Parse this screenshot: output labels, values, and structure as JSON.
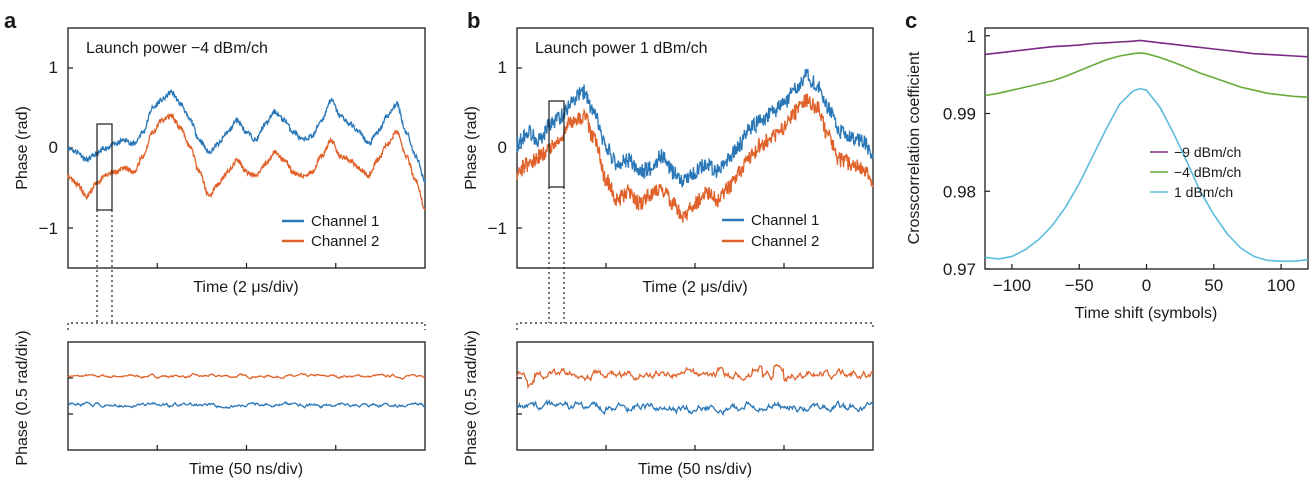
{
  "panels": [
    {
      "label": "a",
      "title": "Launch power −4 dBm/ch",
      "main": {
        "ylabel": "Phase (rad)",
        "xlabel": "Time (2 μs/div)",
        "ylim": [
          -1.5,
          1.5
        ],
        "yticks": [
          "1",
          "0",
          "−1"
        ]
      },
      "zoom": {
        "ylabel": "Phase (0.5 rad/div)",
        "xlabel": "Time (50 ns/div)"
      }
    },
    {
      "label": "b",
      "title": "Launch power 1 dBm/ch",
      "main": {
        "ylabel": "Phase (rad)",
        "xlabel": "Time (2 μs/div)",
        "ylim": [
          -1.5,
          1.5
        ],
        "yticks": [
          "1",
          "0",
          "−1"
        ]
      },
      "zoom": {
        "ylabel": "Phase (0.5 rad/div)",
        "xlabel": "Time (50 ns/div)"
      }
    },
    {
      "label": "c"
    }
  ],
  "colors": {
    "channel1": "#2a77b8",
    "channel2": "#e0622a",
    "p_m9": "#7b2a86",
    "p_m4": "#6aaa3a",
    "p_1": "#5bbcdc"
  },
  "chart_data": [
    {
      "type": "line",
      "panel": "a",
      "title": "Launch power −4 dBm/ch",
      "xlabel": "Time (2 μs/div)",
      "ylabel": "Phase (rad)",
      "ylim": [
        -1.5,
        1.5
      ],
      "yticks": [
        1,
        0,
        -1
      ],
      "legend": "bottom-right",
      "series": [
        {
          "name": "Channel 1",
          "color": "#2a77b8",
          "noise": 0.03,
          "values": [
            0.0,
            -0.05,
            -0.15,
            -0.08,
            0.0,
            0.05,
            0.1,
            0.05,
            0.2,
            0.5,
            0.6,
            0.7,
            0.55,
            0.35,
            0.1,
            -0.05,
            0.05,
            0.2,
            0.35,
            0.2,
            0.1,
            0.3,
            0.45,
            0.35,
            0.2,
            0.1,
            0.15,
            0.35,
            0.6,
            0.4,
            0.3,
            0.2,
            0.05,
            0.2,
            0.4,
            0.55,
            0.2,
            -0.1,
            -0.4
          ]
        },
        {
          "name": "Channel 2",
          "color": "#e0622a",
          "noise": 0.03,
          "values": [
            -0.35,
            -0.45,
            -0.6,
            -0.45,
            -0.35,
            -0.3,
            -0.25,
            -0.3,
            -0.1,
            0.2,
            0.35,
            0.4,
            0.25,
            0.0,
            -0.3,
            -0.6,
            -0.45,
            -0.3,
            -0.15,
            -0.3,
            -0.35,
            -0.2,
            -0.05,
            -0.15,
            -0.3,
            -0.35,
            -0.3,
            -0.1,
            0.1,
            -0.1,
            -0.15,
            -0.25,
            -0.35,
            -0.15,
            0.05,
            0.2,
            -0.1,
            -0.4,
            -0.75
          ]
        }
      ]
    },
    {
      "type": "line",
      "panel": "b",
      "title": "Launch power 1 dBm/ch",
      "xlabel": "Time (2 μs/div)",
      "ylabel": "Phase (rad)",
      "ylim": [
        -1.5,
        1.5
      ],
      "yticks": [
        1,
        0,
        -1
      ],
      "legend": "bottom-right",
      "series": [
        {
          "name": "Channel 1",
          "color": "#2a77b8",
          "noise": 0.1,
          "values": [
            0.05,
            0.2,
            0.1,
            0.3,
            0.4,
            0.6,
            0.7,
            0.4,
            0.0,
            -0.2,
            -0.15,
            -0.3,
            -0.25,
            -0.1,
            -0.3,
            -0.4,
            -0.3,
            -0.2,
            -0.3,
            -0.15,
            0.05,
            0.25,
            0.35,
            0.45,
            0.55,
            0.75,
            0.9,
            0.8,
            0.5,
            0.2,
            0.15,
            0.1,
            -0.05
          ]
        },
        {
          "name": "Channel 2",
          "color": "#e0622a",
          "noise": 0.1,
          "values": [
            -0.3,
            -0.2,
            -0.1,
            0.0,
            0.15,
            0.35,
            0.4,
            0.1,
            -0.4,
            -0.65,
            -0.55,
            -0.7,
            -0.6,
            -0.5,
            -0.7,
            -0.85,
            -0.7,
            -0.55,
            -0.65,
            -0.5,
            -0.3,
            -0.1,
            0.05,
            0.15,
            0.25,
            0.45,
            0.6,
            0.5,
            0.15,
            -0.15,
            -0.2,
            -0.25,
            -0.4
          ]
        }
      ]
    },
    {
      "type": "line",
      "panel": "a-zoom",
      "xlabel": "Time (50 ns/div)",
      "ylabel": "Phase (0.5 rad/div)",
      "series": [
        {
          "name": "Channel 2",
          "color": "#e0622a",
          "base": 0.55,
          "noise": 0.025,
          "spikes": 0
        },
        {
          "name": "Channel 1",
          "color": "#2a77b8",
          "base": -0.25,
          "noise": 0.035,
          "spikes": 0
        }
      ]
    },
    {
      "type": "line",
      "panel": "b-zoom",
      "xlabel": "Time (50 ns/div)",
      "ylabel": "Phase (0.5 rad/div)",
      "series": [
        {
          "name": "Channel 2",
          "color": "#e0622a",
          "base": 0.6,
          "noise": 0.07,
          "spikes": 1
        },
        {
          "name": "Channel 1",
          "color": "#2a77b8",
          "base": -0.3,
          "noise": 0.07,
          "spikes": 0
        }
      ]
    },
    {
      "type": "line",
      "panel": "c",
      "xlabel": "Time shift (symbols)",
      "ylabel": "Crosscorrelation coefficient",
      "xlim": [
        -120,
        120
      ],
      "ylim": [
        0.97,
        1.001
      ],
      "xticks": [
        -100,
        -50,
        0,
        50,
        100
      ],
      "yticks": [
        1,
        0.99,
        0.98,
        0.97
      ],
      "ytick_labels": [
        "1",
        "0.99",
        "0.98",
        "0.97"
      ],
      "legend": "right",
      "x": [
        -120,
        -110,
        -100,
        -90,
        -80,
        -70,
        -60,
        -50,
        -40,
        -30,
        -20,
        -10,
        -5,
        0,
        10,
        20,
        30,
        40,
        50,
        60,
        70,
        80,
        90,
        100,
        110,
        120
      ],
      "series": [
        {
          "name": "−9 dBm/ch",
          "color": "#7b2a86",
          "values": [
            0.9976,
            0.9978,
            0.998,
            0.9982,
            0.9984,
            0.9986,
            0.9987,
            0.9988,
            0.999,
            0.9991,
            0.9992,
            0.9993,
            0.9994,
            0.9993,
            0.9991,
            0.9989,
            0.9987,
            0.9985,
            0.9983,
            0.9981,
            0.9979,
            0.9977,
            0.9976,
            0.9975,
            0.9974,
            0.9973
          ]
        },
        {
          "name": "−4 dBm/ch",
          "color": "#6aaa3a",
          "values": [
            0.9923,
            0.9926,
            0.993,
            0.9934,
            0.9938,
            0.9942,
            0.9948,
            0.9955,
            0.9962,
            0.9969,
            0.9974,
            0.9977,
            0.9978,
            0.9977,
            0.9972,
            0.9966,
            0.9959,
            0.9952,
            0.9946,
            0.994,
            0.9934,
            0.993,
            0.9926,
            0.9924,
            0.9922,
            0.9921
          ]
        },
        {
          "name": "1 dBm/ch",
          "color": "#5bbcdc",
          "values": [
            0.9715,
            0.9713,
            0.9716,
            0.9725,
            0.9738,
            0.9756,
            0.978,
            0.981,
            0.9845,
            0.988,
            0.9912,
            0.9929,
            0.9932,
            0.993,
            0.9908,
            0.9875,
            0.9838,
            0.98,
            0.977,
            0.9745,
            0.9727,
            0.9716,
            0.9711,
            0.971,
            0.971,
            0.9712
          ]
        }
      ]
    }
  ]
}
